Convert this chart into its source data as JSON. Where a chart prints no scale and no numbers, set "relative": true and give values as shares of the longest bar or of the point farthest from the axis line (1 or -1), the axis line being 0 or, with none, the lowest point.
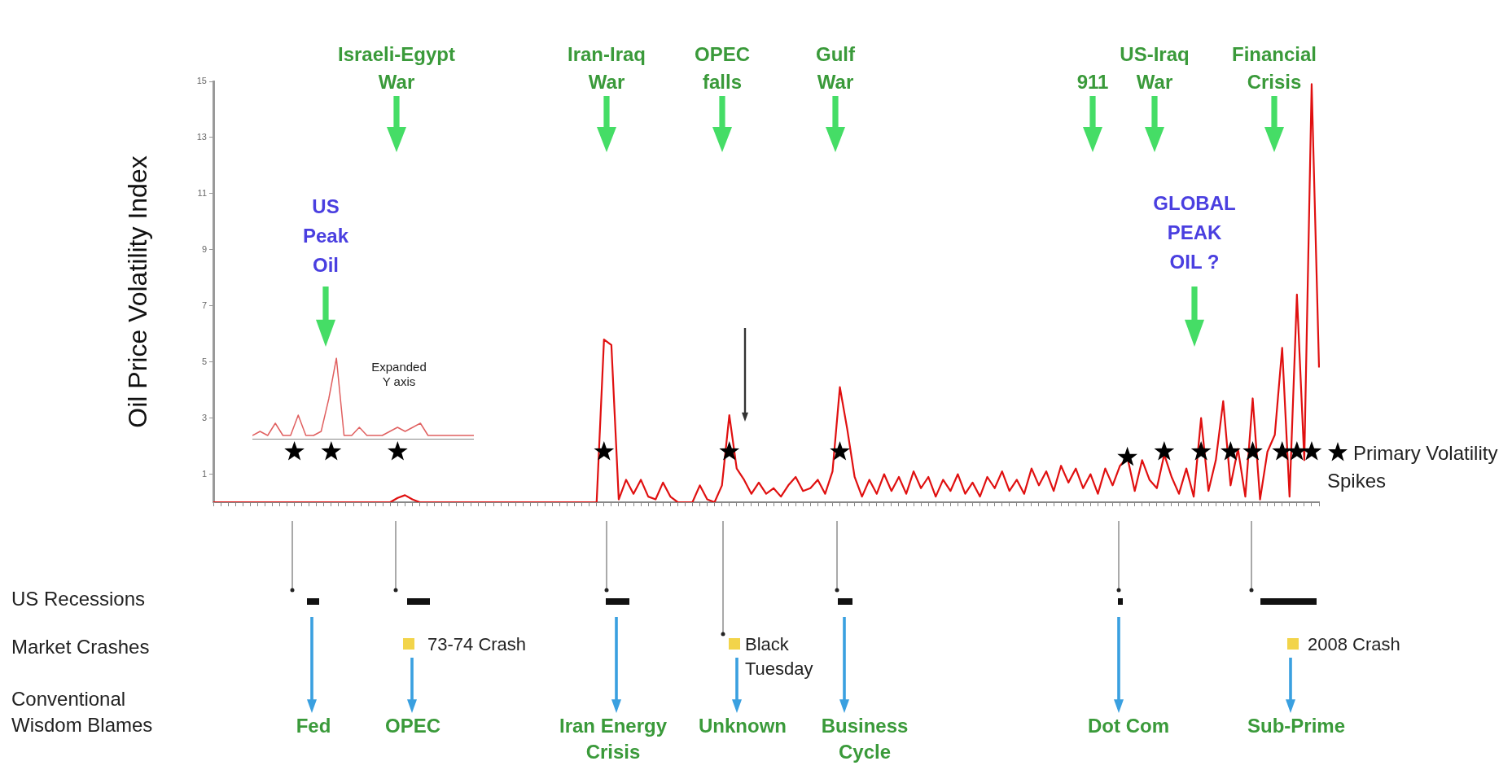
{
  "chart_data": [
    {
      "type": "line",
      "ylabel": "Oil Price Volatility Index",
      "ylim": [
        0,
        15
      ],
      "yticks": [
        1,
        3,
        5,
        7,
        9,
        11,
        13,
        15
      ],
      "tick_labels": "y",
      "legend": "right",
      "categories": [
        null,
        null,
        null,
        null,
        null,
        null,
        null,
        null,
        null,
        null,
        null,
        null,
        null,
        null,
        null,
        null,
        null,
        null,
        null,
        null,
        null,
        null,
        null,
        null,
        null,
        null,
        null,
        null,
        null,
        null,
        null,
        null,
        null,
        null,
        null,
        null,
        null,
        null,
        null,
        null,
        null,
        null,
        null,
        null,
        null,
        null,
        null,
        null,
        null,
        null,
        null,
        null,
        null,
        null,
        null,
        null,
        null,
        null,
        null,
        null,
        null,
        null,
        null,
        null,
        null,
        null,
        null,
        null,
        null,
        null,
        null,
        null,
        null,
        null,
        null,
        null,
        null,
        null,
        null,
        null,
        null,
        null,
        null,
        null,
        null,
        null,
        null,
        null,
        null,
        null,
        null,
        null,
        null,
        null,
        null,
        null,
        null,
        null,
        null,
        null,
        null,
        null,
        null,
        null,
        null,
        null,
        null,
        null,
        null,
        null,
        null,
        null,
        null,
        null,
        null,
        null,
        null,
        null,
        null,
        null,
        null,
        null,
        null,
        null,
        null,
        null,
        null,
        null,
        null,
        null,
        null,
        null,
        null,
        null,
        null,
        null,
        null,
        null,
        null,
        null,
        null,
        null,
        null,
        null,
        null,
        null,
        null,
        null,
        null,
        null,
        null
      ],
      "series": [
        {
          "color": "#e01010",
          "values": [
            0,
            0,
            0,
            0,
            0,
            0,
            0,
            0,
            0,
            0,
            0,
            0,
            0,
            0,
            0,
            0,
            0,
            0,
            0,
            0,
            0,
            0,
            0,
            0,
            0,
            0.15,
            0.25,
            0.1,
            0,
            0,
            0,
            0,
            0,
            0,
            0,
            0,
            0,
            0,
            0,
            0,
            0,
            0,
            0,
            0,
            0,
            0,
            0,
            0,
            0,
            0,
            0,
            0,
            0,
            5.8,
            5.6,
            0.1,
            0.8,
            0.3,
            0.8,
            0.2,
            0.1,
            0.7,
            0.2,
            0,
            0,
            0,
            0.6,
            0.1,
            0,
            0.6,
            3.1,
            1.2,
            0.8,
            0.3,
            0.7,
            0.3,
            0.5,
            0.2,
            0.6,
            0.9,
            0.4,
            0.5,
            0.8,
            0.3,
            1.1,
            4.1,
            2.6,
            0.9,
            0.2,
            0.8,
            0.3,
            1.0,
            0.4,
            0.9,
            0.3,
            1.1,
            0.5,
            0.9,
            0.2,
            0.8,
            0.4,
            1.0,
            0.3,
            0.7,
            0.2,
            0.9,
            0.5,
            1.1,
            0.4,
            0.8,
            0.3,
            1.2,
            0.6,
            1.1,
            0.4,
            1.3,
            0.7,
            1.2,
            0.5,
            1.0,
            0.3,
            1.2,
            0.6,
            1.3,
            1.6,
            0.4,
            1.5,
            0.8,
            0.5,
            1.7,
            0.9,
            0.3,
            1.2,
            0.2,
            3.0,
            0.4,
            1.5,
            3.6,
            0.6,
            1.9,
            0.2,
            3.7,
            0.1,
            1.8,
            2.4,
            5.5,
            0.2,
            7.4,
            1.5,
            14.9,
            4.8
          ]
        },
        {
          "type": "scatter",
          "name": "Primary Volatility Spikes",
          "color": "#000000",
          "marker": "star",
          "values": [
            null,
            null,
            null,
            null,
            null,
            null,
            null,
            null,
            null,
            null,
            null,
            1.8,
            null,
            null,
            null,
            null,
            1.8,
            null,
            null,
            null,
            null,
            null,
            null,
            null,
            null,
            1.8,
            null,
            null,
            null,
            null,
            null,
            null,
            null,
            null,
            null,
            null,
            null,
            null,
            null,
            null,
            null,
            null,
            null,
            null,
            null,
            null,
            null,
            null,
            null,
            null,
            null,
            null,
            null,
            1.8,
            null,
            null,
            null,
            null,
            null,
            null,
            null,
            null,
            null,
            null,
            null,
            null,
            null,
            null,
            null,
            null,
            1.8,
            null,
            null,
            null,
            null,
            null,
            null,
            null,
            null,
            null,
            null,
            null,
            null,
            null,
            null,
            1.8,
            null,
            null,
            null,
            null,
            null,
            null,
            null,
            null,
            null,
            null,
            null,
            null,
            null,
            null,
            null,
            null,
            null,
            null,
            null,
            null,
            null,
            null,
            null,
            null,
            null,
            null,
            null,
            null,
            null,
            null,
            null,
            null,
            null,
            null,
            null,
            null,
            null,
            null,
            1.6,
            null,
            null,
            null,
            null,
            1.8,
            null,
            null,
            null,
            null,
            1.8,
            null,
            null,
            null,
            1.8,
            null,
            null,
            1.8,
            null,
            null,
            null,
            1.8,
            null,
            1.8,
            null,
            1.8,
            null
          ]
        }
      ],
      "annotations": [
        "Israeli-Egypt War",
        "Iran-Iraq War",
        "OPEC falls",
        "Gulf War",
        "911",
        "US-Iraq War",
        "Financial Crisis",
        "US Peak Oil",
        "GLOBAL PEAK OIL ?",
        "US Recessions",
        "Market Crashes",
        "Conventional Wisdom Blames",
        "73-74 Crash",
        "Black Tuesday",
        "2008 Crash",
        "Fed",
        "OPEC",
        "Iran Energy Crisis",
        "Unknown",
        "Business Cycle",
        "Dot Com",
        "Sub-Prime"
      ]
    },
    {
      "type": "line",
      "relative": true,
      "tick_labels": false,
      "categories": [
        null,
        null,
        null,
        null,
        null,
        null,
        null,
        null,
        null,
        null,
        null,
        null,
        null,
        null,
        null,
        null,
        null,
        null,
        null,
        null,
        null,
        null,
        null,
        null,
        null,
        null,
        null,
        null,
        null,
        null
      ],
      "series": [
        {
          "color": "#e06060",
          "values": [
            0.05,
            0.1,
            0.05,
            0.2,
            0.05,
            0.05,
            0.3,
            0.05,
            0.05,
            0.1,
            0.5,
            1,
            0.05,
            0.05,
            0.15,
            0.05,
            0.05,
            0.05,
            0.1,
            0.15,
            0.1,
            0.15,
            0.2,
            0.05,
            0.05,
            0.05,
            0.05,
            0.05,
            0.05,
            0.05
          ]
        }
      ],
      "annotations": [
        "Expanded Y axis"
      ]
    }
  ]
}
